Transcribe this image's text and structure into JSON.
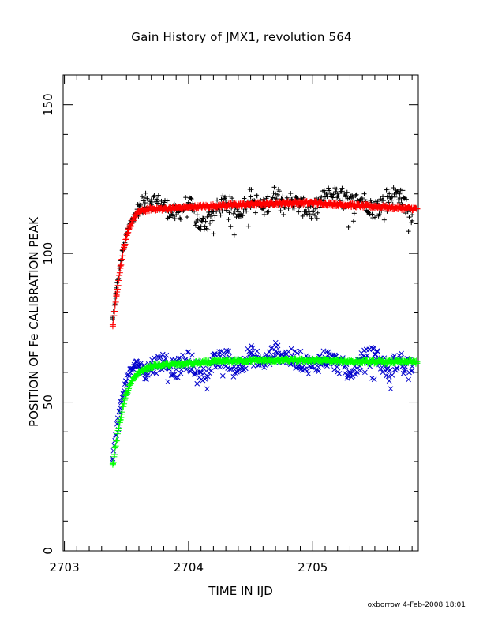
{
  "chart_data": {
    "type": "scatter",
    "title": "Gain History of JMX1, revolution 564",
    "xlabel": "TIME IN IJD",
    "ylabel": "POSITION OF Fe CALIBRATION PEAK",
    "xlim": [
      2702.99,
      2705.85
    ],
    "ylim": [
      0,
      160
    ],
    "xticks": [
      2703,
      2704,
      2705
    ],
    "xtick_labels": [
      "2703",
      "2704",
      "2705"
    ],
    "yticks": [
      0,
      50,
      100,
      150
    ],
    "ytick_labels": [
      "0",
      "50",
      "100",
      "150"
    ],
    "grid": false,
    "legend": "none",
    "series": [
      {
        "marker": "+",
        "color": "#000000",
        "style": "points",
        "x": [
          2703.39,
          2703.41,
          2703.43,
          2703.45,
          2703.47,
          2703.5,
          2703.53,
          2703.56,
          2703.6,
          2703.65,
          2703.7,
          2703.8,
          2703.9,
          2704.0,
          2704.1,
          2704.2,
          2704.3,
          2704.4,
          2704.5,
          2704.6,
          2704.7,
          2704.8,
          2704.9,
          2705.0,
          2705.1,
          2705.2,
          2705.3,
          2705.4,
          2705.5,
          2705.6,
          2705.7,
          2705.8
        ],
        "y": [
          78,
          85,
          91,
          96,
          101,
          106,
          110,
          113,
          116,
          117,
          118,
          116,
          113,
          117,
          109,
          114,
          117,
          114,
          119,
          115,
          120,
          118,
          116,
          114,
          119,
          120,
          117,
          118,
          115,
          119,
          120,
          113
        ]
      },
      {
        "marker": "+",
        "color": "#ff0000",
        "style": "fit",
        "x": [
          2703.39,
          2703.42,
          2703.45,
          2703.48,
          2703.52,
          2703.56,
          2703.6,
          2703.7,
          2703.8,
          2704.0,
          2704.2,
          2704.5,
          2704.8,
          2705.0,
          2705.2,
          2705.4,
          2705.6,
          2705.84
        ],
        "y": [
          76,
          86,
          95,
          102,
          108,
          112,
          114,
          115,
          115,
          115.5,
          116,
          116.5,
          117,
          117,
          116.5,
          116,
          115.5,
          115
        ]
      },
      {
        "marker": "x",
        "color": "#0000cc",
        "style": "points",
        "x": [
          2703.39,
          2703.41,
          2703.43,
          2703.45,
          2703.47,
          2703.5,
          2703.53,
          2703.56,
          2703.6,
          2703.65,
          2703.7,
          2703.8,
          2703.9,
          2704.0,
          2704.1,
          2704.2,
          2704.3,
          2704.4,
          2704.5,
          2704.6,
          2704.7,
          2704.8,
          2704.9,
          2705.0,
          2705.1,
          2705.2,
          2705.3,
          2705.4,
          2705.5,
          2705.6,
          2705.7,
          2705.8
        ],
        "y": [
          31,
          37,
          43,
          48,
          53,
          57,
          60,
          62,
          63,
          60,
          62,
          64,
          61,
          64,
          60,
          63,
          65,
          62,
          66,
          63,
          67,
          65,
          64,
          62,
          65,
          63,
          60,
          64,
          66,
          61,
          64,
          62
        ]
      },
      {
        "marker": "+",
        "color": "#00ff00",
        "style": "fit",
        "x": [
          2703.39,
          2703.42,
          2703.45,
          2703.48,
          2703.52,
          2703.56,
          2703.6,
          2703.7,
          2703.8,
          2704.0,
          2704.2,
          2704.5,
          2704.8,
          2705.0,
          2705.2,
          2705.4,
          2705.6,
          2705.84
        ],
        "y": [
          29,
          37,
          44,
          50,
          55,
          58,
          60,
          62,
          62.5,
          63,
          63.5,
          64,
          64,
          64,
          63.8,
          63.6,
          63.5,
          63.5
        ]
      }
    ],
    "footer": "oxborrow   4-Feb-2008 18:01"
  }
}
